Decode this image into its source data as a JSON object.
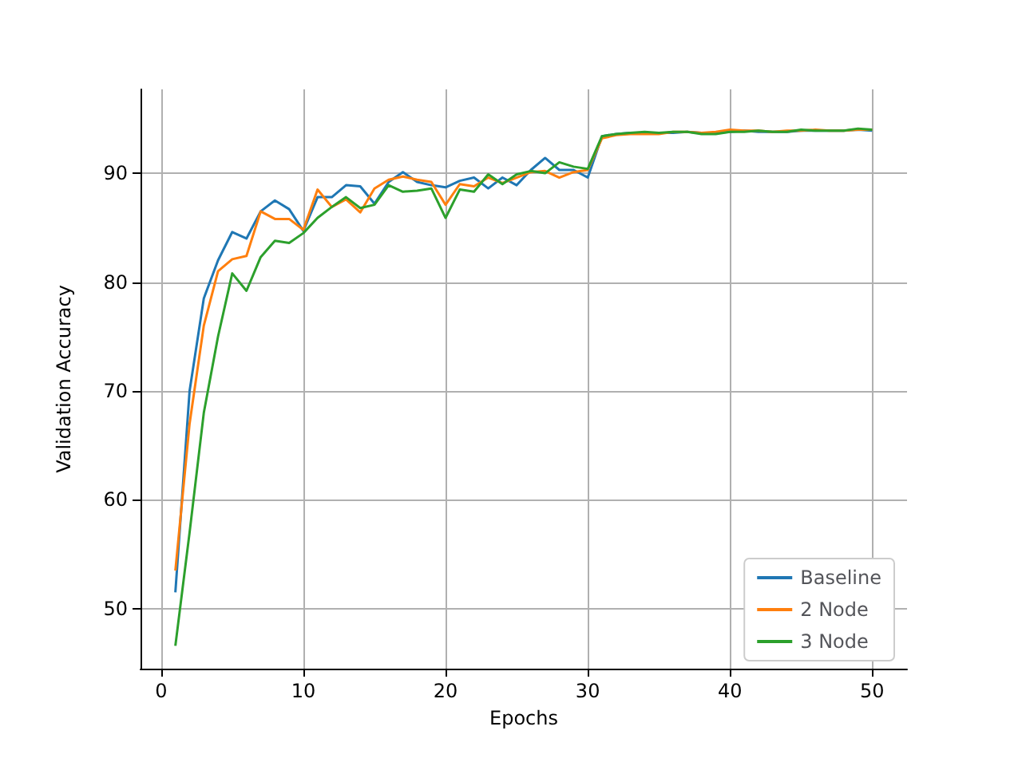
{
  "chart_data": {
    "type": "line",
    "xlabel": "Epochs",
    "ylabel": "Validation Accuracy",
    "x": [
      1,
      2,
      3,
      4,
      5,
      6,
      7,
      8,
      9,
      10,
      11,
      12,
      13,
      14,
      15,
      16,
      17,
      18,
      19,
      20,
      21,
      22,
      23,
      24,
      25,
      26,
      27,
      28,
      29,
      30,
      31,
      32,
      33,
      34,
      35,
      36,
      37,
      38,
      39,
      40,
      41,
      42,
      43,
      44,
      45,
      46,
      47,
      48,
      49,
      50
    ],
    "series": [
      {
        "name": "Baseline",
        "color": "#1f77b4",
        "values": [
          51.5,
          70,
          78.5,
          82,
          84.6,
          84,
          86.5,
          87.5,
          86.7,
          84.7,
          87.8,
          87.8,
          88.9,
          88.8,
          87.2,
          89.2,
          90.1,
          89.2,
          88.9,
          88.7,
          89.3,
          89.6,
          88.6,
          89.6,
          88.9,
          90.3,
          91.4,
          90.3,
          90.3,
          89.6,
          93.4,
          93.6,
          93.7,
          93.7,
          93.7,
          93.7,
          93.8,
          93.7,
          93.7,
          93.8,
          93.9,
          93.8,
          93.8,
          93.8,
          93.9,
          93.9,
          93.9,
          93.9,
          94.0,
          93.9
        ]
      },
      {
        "name": "2 Node",
        "color": "#ff7f0e",
        "values": [
          53.5,
          67,
          76,
          81,
          82.1,
          82.4,
          86.5,
          85.8,
          85.8,
          84.8,
          88.5,
          86.9,
          87.6,
          86.4,
          88.6,
          89.4,
          89.7,
          89.4,
          89.2,
          87.1,
          89,
          88.8,
          89.6,
          89.1,
          89.6,
          90.1,
          90.2,
          89.6,
          90.1,
          90.3,
          93.2,
          93.5,
          93.6,
          93.6,
          93.6,
          93.8,
          93.8,
          93.7,
          93.8,
          94.0,
          93.9,
          93.9,
          93.8,
          93.9,
          93.9,
          94.0,
          93.9,
          93.9,
          94.0,
          94.0
        ]
      },
      {
        "name": "3 Node",
        "color": "#2ca02c",
        "values": [
          46.6,
          57,
          68,
          75,
          80.8,
          79.2,
          82.3,
          83.8,
          83.6,
          84.5,
          85.9,
          86.9,
          87.8,
          86.8,
          87.1,
          88.9,
          88.3,
          88.4,
          88.6,
          85.9,
          88.5,
          88.3,
          89.9,
          89,
          89.9,
          90.2,
          90,
          91,
          90.6,
          90.4,
          93.4,
          93.6,
          93.7,
          93.8,
          93.7,
          93.8,
          93.8,
          93.6,
          93.6,
          93.8,
          93.8,
          93.9,
          93.8,
          93.8,
          94.0,
          93.9,
          93.9,
          93.9,
          94.1,
          94.0
        ]
      }
    ],
    "xlim": [
      -1.45,
      52.45
    ],
    "xticks": [
      0,
      10,
      20,
      30,
      40,
      50
    ],
    "ylim": [
      44.5,
      97.7
    ],
    "yticks": [
      50,
      60,
      70,
      80,
      90
    ],
    "grid": true,
    "legend": "bottom right"
  }
}
